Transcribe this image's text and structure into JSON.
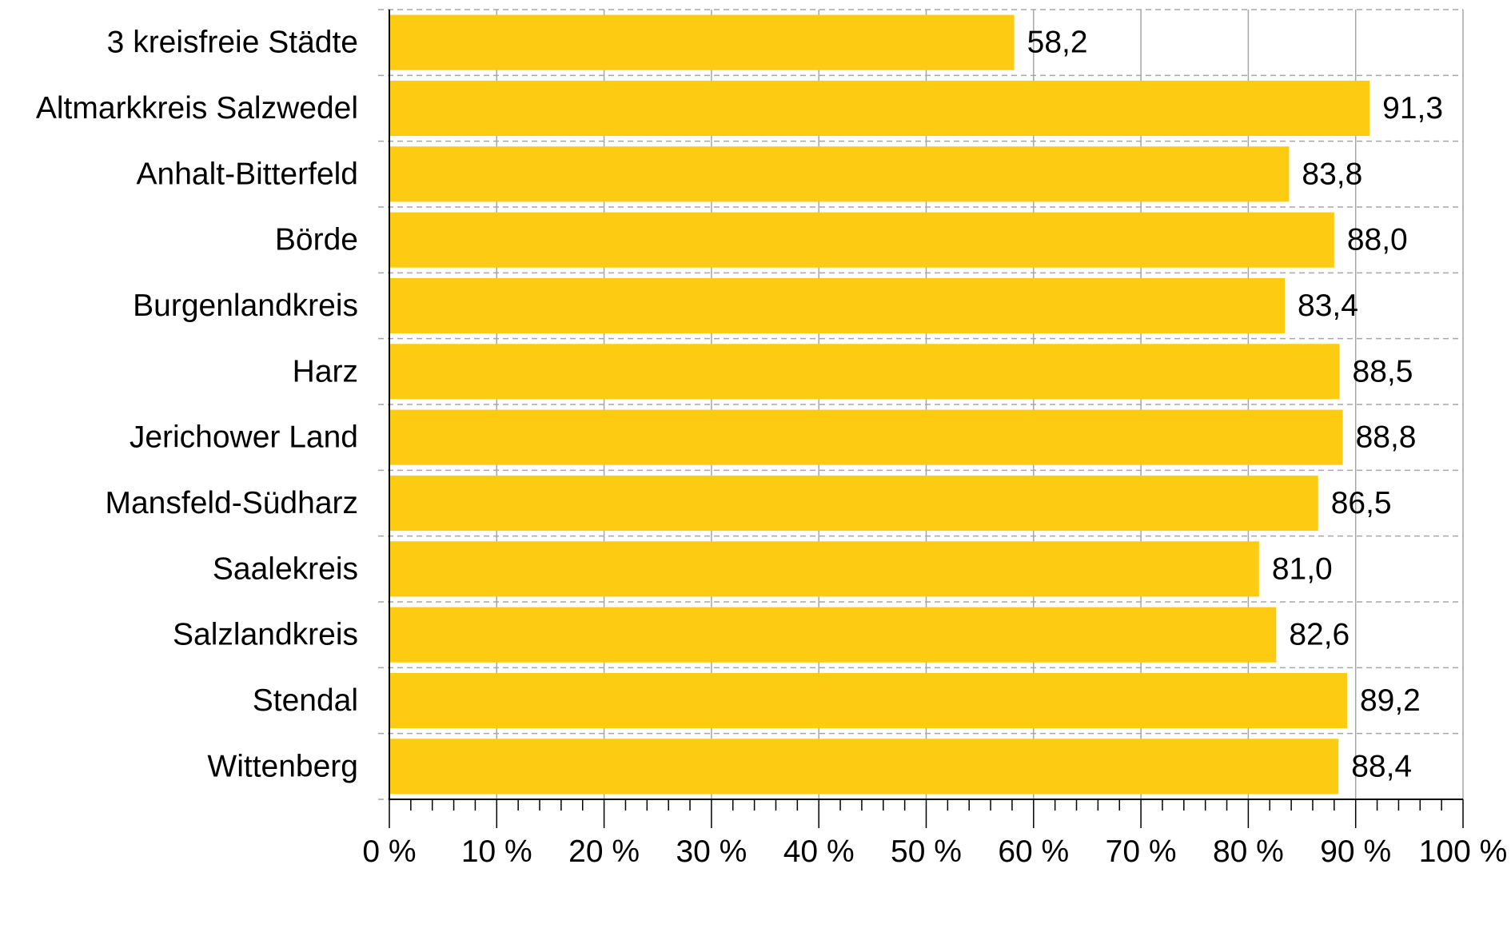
{
  "chart_data": {
    "type": "bar",
    "orientation": "horizontal",
    "categories": [
      "3 kreisfreie Städte",
      "Altmarkkreis Salzwedel",
      "Anhalt-Bitterfeld",
      "Börde",
      "Burgenlandkreis",
      "Harz",
      "Jerichower Land",
      "Mansfeld-Südharz",
      "Saalekreis",
      "Salzlandkreis",
      "Stendal",
      "Wittenberg"
    ],
    "values": [
      58.2,
      91.3,
      83.8,
      88.0,
      83.4,
      88.5,
      88.8,
      86.5,
      81.0,
      82.6,
      89.2,
      88.4
    ],
    "value_labels": [
      "58,2",
      "91,3",
      "83,8",
      "88,0",
      "83,4",
      "88,5",
      "88,8",
      "86,5",
      "81,0",
      "82,6",
      "89,2",
      "88,4"
    ],
    "xlim": [
      0,
      100
    ],
    "x_ticks": [
      0,
      10,
      20,
      30,
      40,
      50,
      60,
      70,
      80,
      90,
      100
    ],
    "x_tick_labels": [
      "0 %",
      "10 %",
      "20 %",
      "30 %",
      "40 %",
      "50 %",
      "60 %",
      "70 %",
      "80 %",
      "90 %",
      "100 %"
    ],
    "title": "",
    "xlabel": "",
    "ylabel": "",
    "grid": true,
    "legend": "none",
    "colors": {
      "bar": "#FDCC12",
      "grid": "#A6A6A6",
      "axis": "#000000",
      "text": "#000000"
    }
  }
}
